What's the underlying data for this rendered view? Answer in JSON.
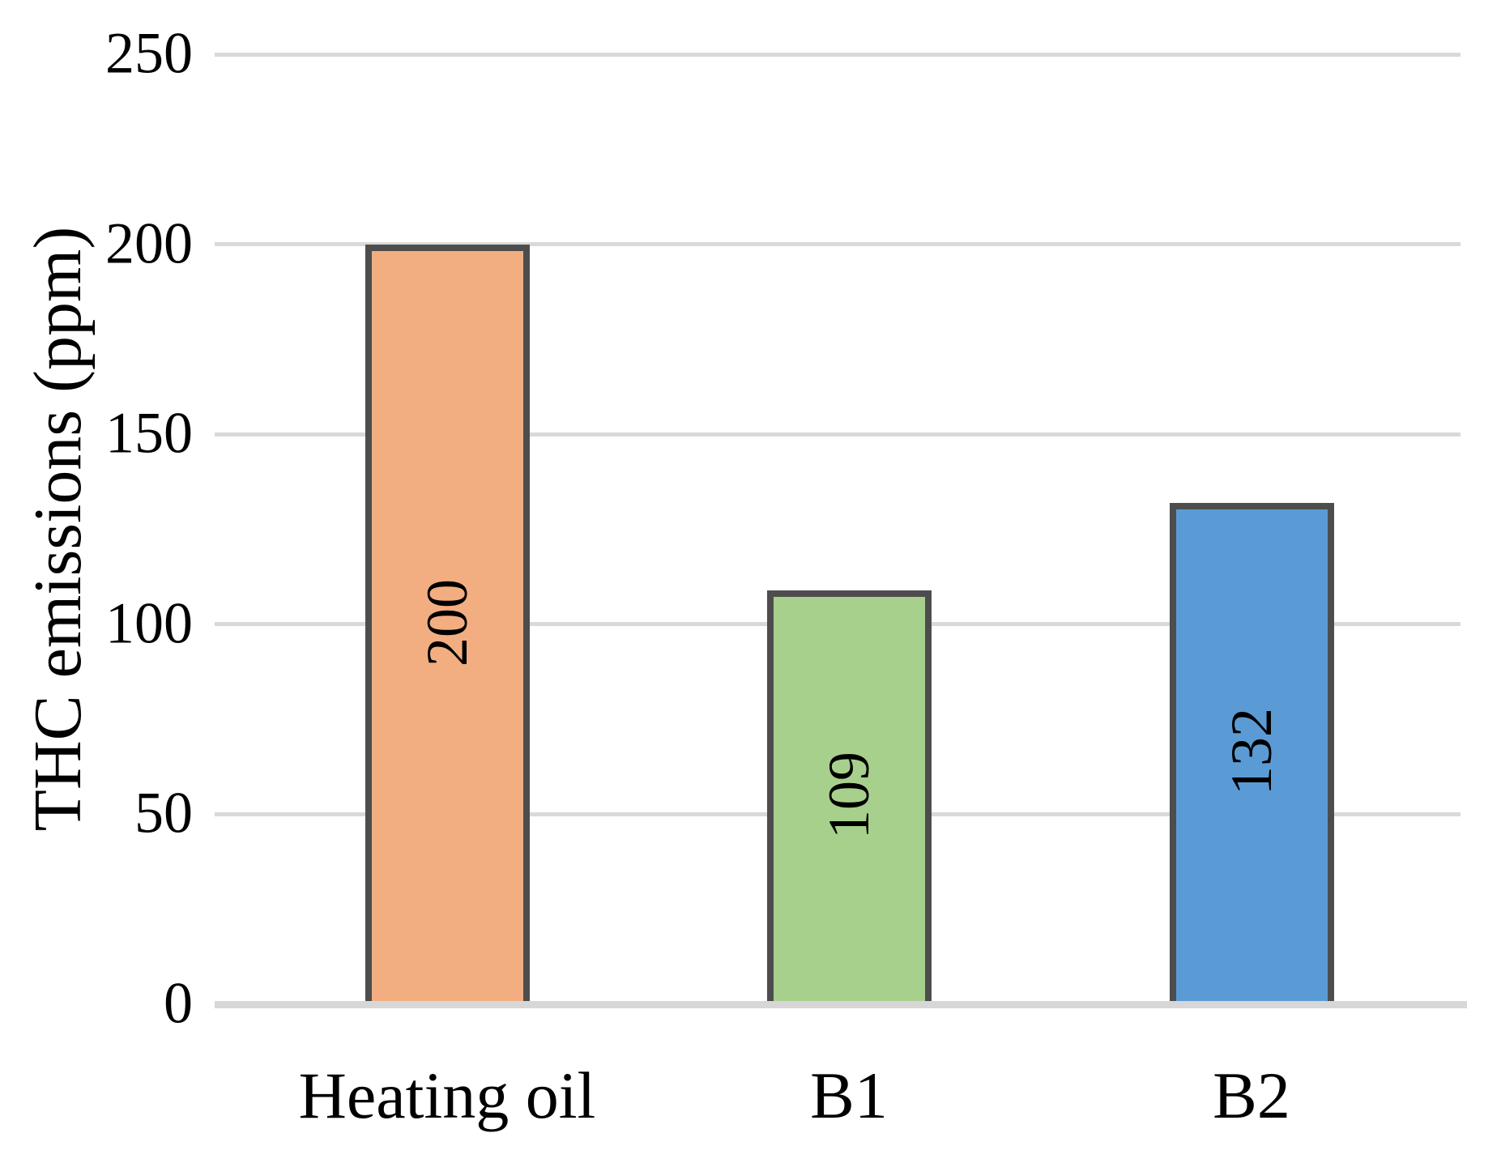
{
  "chart_data": {
    "type": "bar",
    "title": "",
    "xlabel": "",
    "ylabel": "THC emissions (ppm)",
    "categories": [
      "Heating oil",
      "B1",
      "B2"
    ],
    "values": [
      200,
      109,
      132
    ],
    "data_labels": [
      "200",
      "109",
      "132"
    ],
    "data_label_position": "center-of-bar",
    "data_label_rotation_deg": -90,
    "ylim": [
      0,
      250
    ],
    "yticks": [
      0,
      50,
      100,
      150,
      200,
      250
    ],
    "grid": "horizontal",
    "legend": "none",
    "bar_fill_colors": [
      "#F2AE81",
      "#A8D08D",
      "#5B9BD5"
    ],
    "bar_border_color": "#4D4D4D",
    "gridline_color": "#D9D9D9",
    "axis_line_color": "#D7D7D7",
    "text_color": "#000000"
  }
}
